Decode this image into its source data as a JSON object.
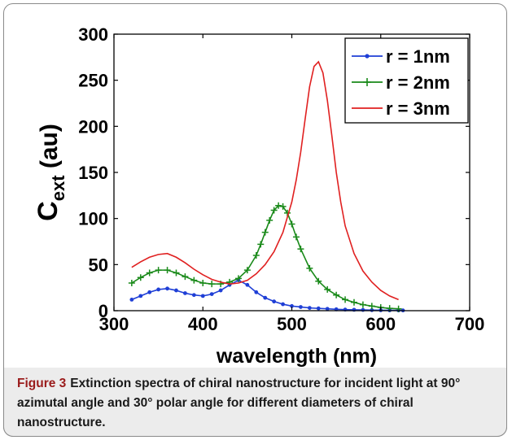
{
  "chart_data": {
    "type": "line",
    "xlabel": "wavelength (nm)",
    "ylabel_main": "C",
    "ylabel_sub": "ext",
    "ylabel_unit": "(au)",
    "xlim": [
      300,
      700
    ],
    "ylim": [
      0,
      300
    ],
    "xticks": [
      "300",
      "400",
      "500",
      "600",
      "700"
    ],
    "yticks": [
      "0",
      "50",
      "100",
      "150",
      "200",
      "250",
      "300"
    ],
    "grid": false,
    "legend_position": "top-right",
    "series": [
      {
        "name": "r = 1nm",
        "color": "#1f3fd6",
        "marker": "dot",
        "x": [
          320,
          330,
          340,
          350,
          360,
          370,
          380,
          390,
          400,
          410,
          420,
          430,
          440,
          450,
          460,
          470,
          480,
          490,
          500,
          510,
          520,
          530,
          540,
          550,
          560,
          570,
          580,
          590,
          600,
          610,
          620,
          625
        ],
        "y": [
          12,
          16,
          20,
          23,
          24,
          22,
          19,
          17,
          16,
          18,
          22,
          28,
          33,
          28,
          20,
          14,
          10,
          7,
          5,
          4,
          3,
          2.5,
          2,
          1.5,
          1.2,
          1,
          0.8,
          0.6,
          0.5,
          0.4,
          0.3,
          0.3
        ]
      },
      {
        "name": "r = 2nm",
        "color": "#1a8a1a",
        "marker": "plus",
        "x": [
          320,
          330,
          340,
          350,
          360,
          370,
          380,
          390,
          400,
          410,
          420,
          430,
          440,
          450,
          460,
          465,
          470,
          475,
          480,
          485,
          490,
          495,
          500,
          505,
          510,
          520,
          530,
          540,
          550,
          560,
          570,
          580,
          590,
          600,
          610,
          620
        ],
        "y": [
          30,
          36,
          41,
          44,
          44,
          41,
          37,
          33,
          30,
          29,
          29,
          31,
          35,
          44,
          60,
          72,
          85,
          98,
          109,
          114,
          113,
          106,
          94,
          80,
          67,
          46,
          32,
          23,
          17,
          12,
          9,
          6.5,
          5,
          3.5,
          2.5,
          2
        ]
      },
      {
        "name": "r = 3nm",
        "color": "#e02020",
        "marker": "none",
        "x": [
          320,
          330,
          340,
          350,
          360,
          370,
          380,
          390,
          400,
          410,
          420,
          430,
          440,
          450,
          460,
          470,
          480,
          490,
          500,
          505,
          510,
          515,
          520,
          525,
          530,
          535,
          540,
          545,
          550,
          555,
          560,
          570,
          580,
          590,
          600,
          610,
          620
        ],
        "y": [
          47,
          53,
          58,
          61,
          62,
          58,
          52,
          45,
          39,
          34,
          31,
          29,
          30,
          33,
          40,
          50,
          64,
          85,
          118,
          142,
          172,
          208,
          243,
          265,
          270,
          258,
          228,
          190,
          150,
          118,
          92,
          62,
          43,
          31,
          22,
          16,
          12
        ]
      }
    ]
  },
  "caption": {
    "label": "Figure 3",
    "text": "Extinction spectra of chiral nanostructure for incident light at 90° azimutal angle and 30° polar angle for different diameters of chiral nanostructure."
  }
}
